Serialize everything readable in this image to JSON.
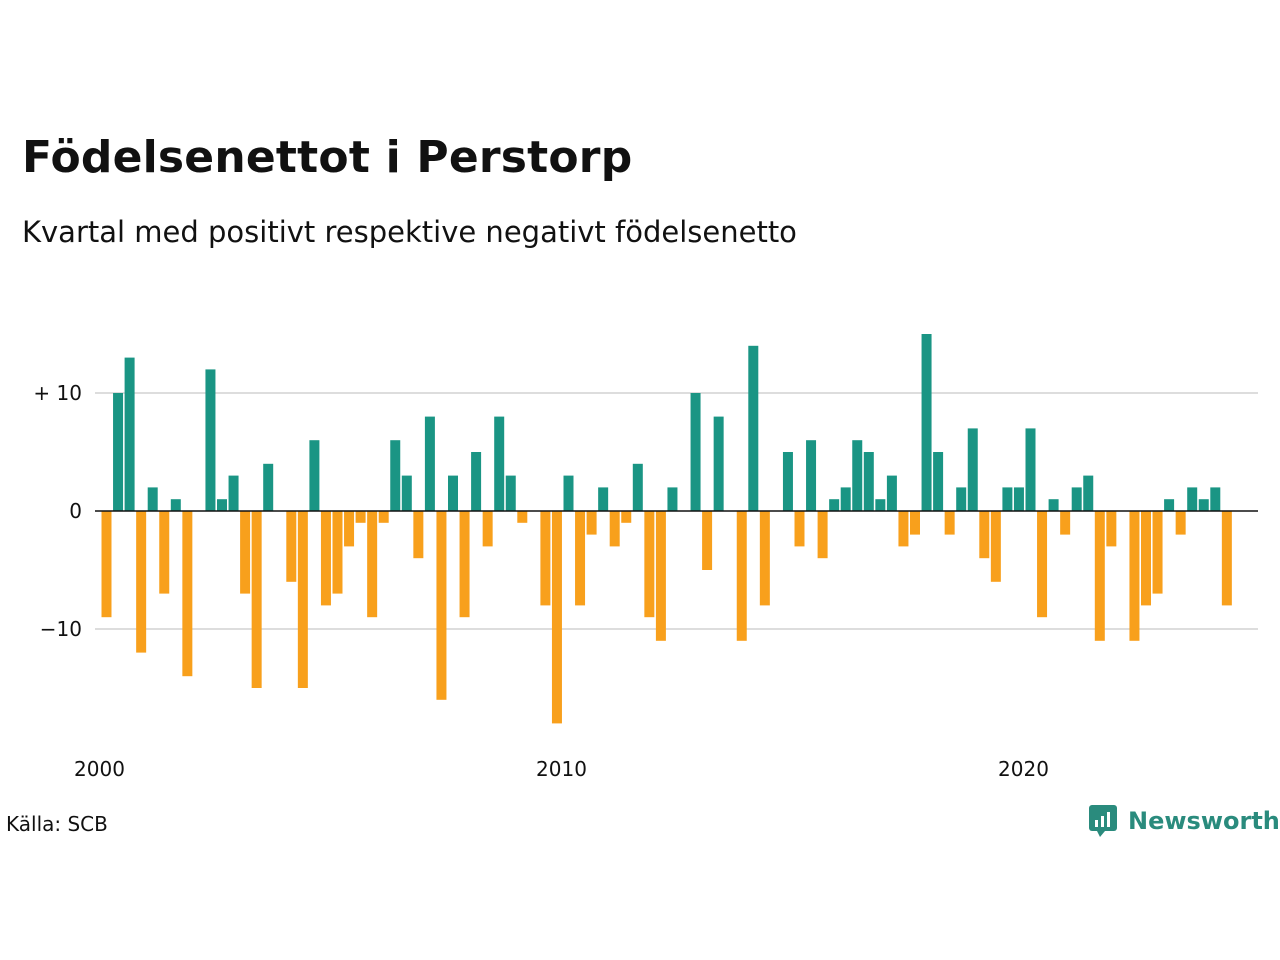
{
  "title": "Födelsenettot i Perstorp",
  "subtitle": "Kvartal med positivt respektive negativt födelsenetto",
  "source": "Källa: SCB",
  "brand": "Newsworthy",
  "colors": {
    "positive": "#1a9584",
    "negative": "#f8a01c",
    "grid": "#dddddd",
    "zero_line": "#111111",
    "brand": "#2a8b7d"
  },
  "chart_data": {
    "type": "bar",
    "x_start": "2000 Q1",
    "x_tick_labels": [
      "2000",
      "2010",
      "2020"
    ],
    "y_tick_labels": [
      "+ 10",
      "0",
      "−10"
    ],
    "y_ticks": [
      10,
      0,
      -10
    ],
    "ylim": [
      -19,
      16
    ],
    "grid": true,
    "values": [
      -9,
      10,
      13,
      -12,
      2,
      -7,
      1,
      -14,
      0,
      12,
      1,
      3,
      -7,
      -15,
      4,
      0,
      -6,
      -15,
      6,
      -8,
      -7,
      -3,
      -1,
      -9,
      -1,
      6,
      3,
      -4,
      8,
      -16,
      3,
      -9,
      5,
      -3,
      8,
      3,
      -1,
      0,
      -8,
      -18,
      3,
      -8,
      -2,
      2,
      -3,
      -1,
      4,
      -9,
      -11,
      2,
      0,
      10,
      -5,
      8,
      0,
      -11,
      14,
      -8,
      0,
      5,
      -3,
      6,
      -4,
      1,
      2,
      6,
      5,
      1,
      3,
      -3,
      -2,
      15,
      5,
      -2,
      2,
      7,
      -4,
      -6,
      2,
      2,
      7,
      -9,
      1,
      -2,
      2,
      3,
      -11,
      -3,
      0,
      -11,
      -8,
      -7,
      1,
      -2,
      2,
      1,
      2,
      -8
    ]
  }
}
